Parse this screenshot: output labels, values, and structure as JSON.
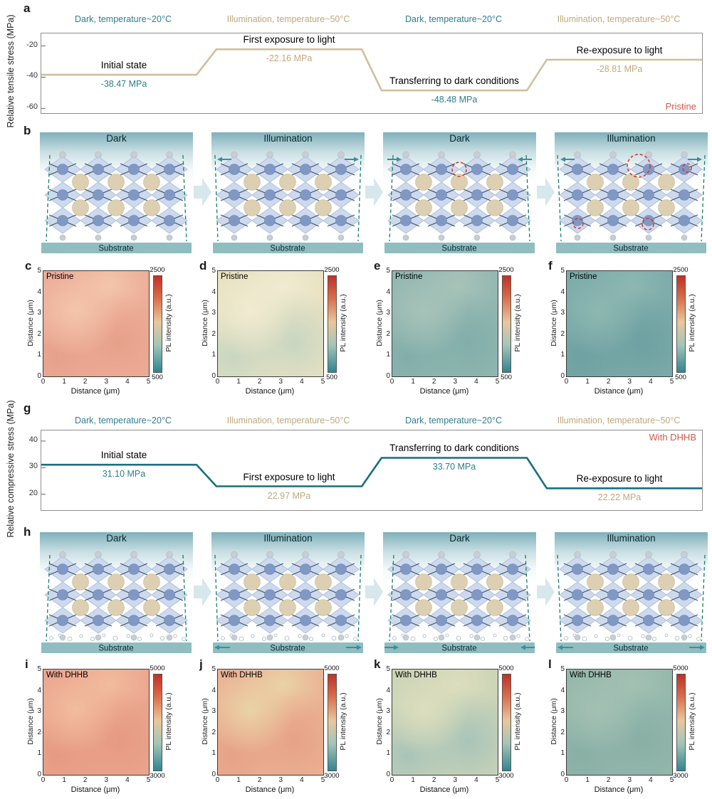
{
  "palette": {
    "dark_condition_color": "#2e7e8f",
    "illumination_condition_color": "#bfa87c",
    "sample_tag_color": "#cd5a4e",
    "substrate_color": "#8fbdc0",
    "flow_arrow_color": "#d6e7ed",
    "colorbar_gradient": [
      "#bf3127",
      "#da6a48",
      "#e9c79b",
      "#a3c5b8",
      "#2f8691"
    ]
  },
  "chart_data": [
    {
      "type": "line",
      "panel": "a",
      "ylabel": "Relative tensile stress (MPa)",
      "ylim": [
        -63,
        -12
      ],
      "yticks": [
        -20,
        -40,
        -60
      ],
      "x_phases": [
        "Dark, temperature~20°C",
        "Illumination, temperature~50°C",
        "Dark, temperature~20°C",
        "Illumination, temperature~50°C"
      ],
      "phase_types": [
        "dark",
        "illumination",
        "dark",
        "illumination"
      ],
      "annotations": [
        "Initial state",
        "First exposure to light",
        "Transferring to dark conditions",
        "Re-exposure to light"
      ],
      "values_mpa": [
        -38.47,
        -22.16,
        -48.48,
        -28.81
      ],
      "value_labels": [
        "-38.47 MPa",
        "-22.16 MPa",
        "-48.48 MPa",
        "-28.81 MPa"
      ],
      "sample": "Pristine",
      "line_color": "#cfc09e"
    },
    {
      "type": "line",
      "panel": "g",
      "ylabel": "Relative compressive stress (MPa)",
      "ylim": [
        14,
        44
      ],
      "yticks": [
        40,
        30,
        20
      ],
      "x_phases": [
        "Dark, temperature~20°C",
        "Illumination, temperature~50°C",
        "Dark, temperature~20°C",
        "Illumination, temperature~50°C"
      ],
      "phase_types": [
        "dark",
        "illumination",
        "dark",
        "illumination"
      ],
      "annotations": [
        "Initial state",
        "First exposure to light",
        "Transferring to dark conditions",
        "Re-exposure to light"
      ],
      "values_mpa": [
        31.1,
        22.97,
        33.7,
        22.22
      ],
      "value_labels": [
        "31.10 MPa",
        "22.97 MPa",
        "33.70 MPa",
        "22.22 MPa"
      ],
      "sample": "With DHHB",
      "line_color": "#16707f"
    },
    {
      "type": "heatmap",
      "xlabel": "Distance (μm)",
      "ylabel": "Distance (μm)",
      "x_range": [
        0,
        5
      ],
      "y_range": [
        0,
        5
      ],
      "axis_ticks": [
        0,
        1,
        2,
        3,
        4,
        5
      ],
      "colorbar_label": "PL intensity (a.u.)",
      "maps": [
        {
          "panel": "c",
          "sample": "Pristine",
          "colorbar_range": [
            500,
            2500
          ],
          "approx_mean_intensity": 2000,
          "base": "#edad98",
          "spot1": "#f4c5ab",
          "spot2": "#e7a18b"
        },
        {
          "panel": "d",
          "sample": "Pristine",
          "colorbar_range": [
            500,
            2500
          ],
          "approx_mean_intensity": 1400,
          "base": "#e8e2c2",
          "spot1": "#f0ebd1",
          "spot2": "#c9d6c1"
        },
        {
          "panel": "e",
          "sample": "Pristine",
          "colorbar_range": [
            500,
            2500
          ],
          "approx_mean_intensity": 1000,
          "base": "#92b7b1",
          "spot1": "#a8c3b8",
          "spot2": "#82aeaa"
        },
        {
          "panel": "f",
          "sample": "Pristine",
          "colorbar_range": [
            500,
            2500
          ],
          "approx_mean_intensity": 820,
          "base": "#7cabaa",
          "spot1": "#8db7b1",
          "spot2": "#6fa1a2"
        },
        {
          "panel": "i",
          "sample": "With DHHB",
          "colorbar_range": [
            3000,
            5000
          ],
          "approx_mean_intensity": 4400,
          "base": "#eba68f",
          "spot1": "#f2bb9e",
          "spot2": "#e69a83"
        },
        {
          "panel": "j",
          "sample": "With DHHB",
          "colorbar_range": [
            3000,
            5000
          ],
          "approx_mean_intensity": 4250,
          "base": "#ebb294",
          "spot1": "#ead2a6",
          "spot2": "#e7a287"
        },
        {
          "panel": "k",
          "sample": "With DHHB",
          "colorbar_range": [
            3000,
            5000
          ],
          "approx_mean_intensity": 3650,
          "base": "#cbd4b6",
          "spot1": "#dcdebe",
          "spot2": "#a9c4b9"
        },
        {
          "panel": "l",
          "sample": "With DHHB",
          "colorbar_range": [
            3000,
            5000
          ],
          "approx_mean_intensity": 3450,
          "base": "#95b8ac",
          "spot1": "#a3c1b3",
          "spot2": "#89afa6"
        }
      ]
    }
  ],
  "schematics": {
    "rows": [
      {
        "panel": "b",
        "substrate_label": "Substrate",
        "panels": [
          {
            "title": "Dark",
            "arrows": "none",
            "tilt": 5,
            "defects": [],
            "bubbles": false
          },
          {
            "title": "Illumination",
            "arrows": "top-out",
            "tilt": -4,
            "defects": [],
            "bubbles": false
          },
          {
            "title": "Dark",
            "arrows": "top-in",
            "tilt": 5,
            "defects": [
              {
                "x": 107,
                "y": 36,
                "r": 10
              }
            ],
            "bubbles": false
          },
          {
            "title": "Illumination",
            "arrows": "top-out",
            "tilt": -5,
            "defects": [
              {
                "x": 118,
                "y": 31,
                "r": 16
              },
              {
                "x": 186,
                "y": 34,
                "r": 6
              },
              {
                "x": 33,
                "y": 112,
                "r": 7
              },
              {
                "x": 131,
                "y": 113,
                "r": 8
              }
            ],
            "bubbles": false
          }
        ]
      },
      {
        "panel": "h",
        "substrate_label": "Substrate",
        "panels": [
          {
            "title": "Dark",
            "arrows": "none",
            "tilt": 5,
            "defects": [],
            "bubbles": true
          },
          {
            "title": "Illumination",
            "arrows": "bottom-out",
            "tilt": -4,
            "defects": [],
            "bubbles": true
          },
          {
            "title": "Dark",
            "arrows": "bottom-in",
            "tilt": 6,
            "defects": [],
            "bubbles": true
          },
          {
            "title": "Illumination",
            "arrows": "bottom-out",
            "tilt": -5,
            "defects": [],
            "bubbles": true
          }
        ]
      }
    ]
  }
}
